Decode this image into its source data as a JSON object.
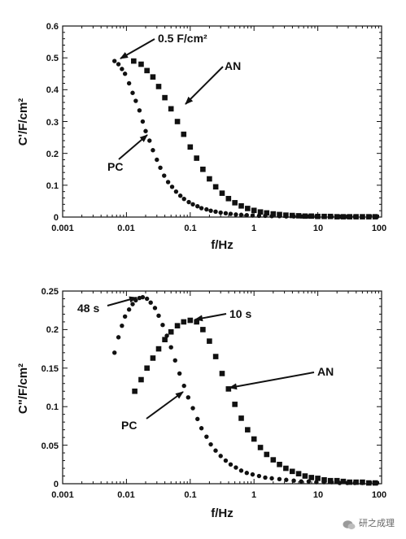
{
  "watermark": "研之成理",
  "chart_data": [
    {
      "type": "scatter",
      "xscale": "log",
      "xlim": [
        0.001,
        100
      ],
      "ylim": [
        0,
        0.6
      ],
      "xticks": [
        "0.001",
        "0.01",
        "0.1",
        "1",
        "10",
        "100"
      ],
      "yticks": [
        "0",
        "0.1",
        "0.2",
        "0.3",
        "0.4",
        "0.5",
        "0.6"
      ],
      "xlabel": "f/Hz",
      "ylabel": "C'/F/cm²",
      "series": [
        {
          "name": "PC",
          "marker": "circle",
          "x": [
            0.0065,
            0.0075,
            0.0085,
            0.0095,
            0.011,
            0.0125,
            0.014,
            0.016,
            0.018,
            0.02,
            0.023,
            0.026,
            0.03,
            0.034,
            0.039,
            0.045,
            0.052,
            0.06,
            0.07,
            0.08,
            0.095,
            0.11,
            0.13,
            0.15,
            0.18,
            0.21,
            0.25,
            0.3,
            0.36,
            0.43,
            0.52,
            0.63,
            0.77,
            0.95,
            1.2,
            1.5,
            1.9,
            2.5,
            3.2,
            4.2,
            5.5,
            7.2,
            9.5,
            12.5,
            16.5,
            22,
            29,
            38,
            50,
            65,
            85
          ],
          "y": [
            0.49,
            0.48,
            0.465,
            0.45,
            0.42,
            0.39,
            0.365,
            0.335,
            0.3,
            0.27,
            0.24,
            0.21,
            0.18,
            0.155,
            0.13,
            0.11,
            0.095,
            0.08,
            0.067,
            0.057,
            0.047,
            0.04,
            0.034,
            0.028,
            0.024,
            0.02,
            0.017,
            0.014,
            0.012,
            0.01,
            0.008,
            0.007,
            0.006,
            0.005,
            0.004,
            0.004,
            0.003,
            0.003,
            0.002,
            0.002,
            0.002,
            0.002,
            0.001,
            0.001,
            0.001,
            0.001,
            0.001,
            0.001,
            0.001,
            0.001,
            0.001
          ]
        },
        {
          "name": "AN",
          "marker": "square",
          "x": [
            0.013,
            0.017,
            0.021,
            0.026,
            0.032,
            0.04,
            0.05,
            0.063,
            0.079,
            0.1,
            0.126,
            0.158,
            0.2,
            0.251,
            0.316,
            0.398,
            0.501,
            0.631,
            0.794,
            1.0,
            1.26,
            1.58,
            2.0,
            2.51,
            3.16,
            3.98,
            5.01,
            6.31,
            7.94,
            10,
            12.6,
            15.8,
            20,
            25.1,
            31.6,
            39.8,
            50.1,
            63.1,
            79.4
          ],
          "y": [
            0.49,
            0.48,
            0.46,
            0.44,
            0.41,
            0.375,
            0.34,
            0.3,
            0.26,
            0.22,
            0.185,
            0.15,
            0.12,
            0.095,
            0.075,
            0.058,
            0.045,
            0.035,
            0.027,
            0.021,
            0.016,
            0.013,
            0.01,
            0.008,
            0.006,
            0.005,
            0.004,
            0.003,
            0.003,
            0.002,
            0.002,
            0.002,
            0.001,
            0.001,
            0.001,
            0.001,
            0.001,
            0.001,
            0.001
          ]
        }
      ],
      "annotations": [
        {
          "text": "0.5 F/cm²",
          "x": 0.008,
          "y": 0.49
        },
        {
          "text": "AN",
          "x": 0.07,
          "y": 0.34
        },
        {
          "text": "PC",
          "x": 0.019,
          "y": 0.27
        }
      ]
    },
    {
      "type": "scatter",
      "xscale": "log",
      "xlim": [
        0.001,
        100
      ],
      "ylim": [
        0,
        0.25
      ],
      "xticks": [
        "0.001",
        "0.01",
        "0.1",
        "1",
        "10",
        "100"
      ],
      "yticks": [
        "0",
        "0.05",
        "0.1",
        "0.15",
        "0.2",
        "0.25"
      ],
      "xlabel": "f/Hz",
      "ylabel": "C\"/F/cm²",
      "series": [
        {
          "name": "PC",
          "marker": "circle",
          "x": [
            0.0065,
            0.0075,
            0.0085,
            0.0095,
            0.011,
            0.0125,
            0.014,
            0.016,
            0.018,
            0.021,
            0.024,
            0.028,
            0.032,
            0.037,
            0.043,
            0.05,
            0.058,
            0.068,
            0.08,
            0.093,
            0.11,
            0.13,
            0.15,
            0.18,
            0.21,
            0.25,
            0.3,
            0.36,
            0.43,
            0.52,
            0.63,
            0.77,
            0.95,
            1.2,
            1.5,
            1.9,
            2.5,
            3.2,
            4.2,
            5.5,
            7.2,
            9.5,
            12.5,
            16.5,
            22,
            29,
            38,
            50,
            65,
            85
          ],
          "y": [
            0.17,
            0.19,
            0.205,
            0.217,
            0.226,
            0.233,
            0.238,
            0.241,
            0.242,
            0.24,
            0.235,
            0.228,
            0.218,
            0.206,
            0.192,
            0.177,
            0.16,
            0.143,
            0.127,
            0.112,
            0.098,
            0.084,
            0.072,
            0.061,
            0.051,
            0.043,
            0.036,
            0.03,
            0.025,
            0.021,
            0.017,
            0.014,
            0.012,
            0.01,
            0.008,
            0.007,
            0.006,
            0.005,
            0.004,
            0.003,
            0.003,
            0.002,
            0.002,
            0.002,
            0.001,
            0.001,
            0.001,
            0.001,
            0.001,
            0.001
          ]
        },
        {
          "name": "AN",
          "marker": "square",
          "x": [
            0.0135,
            0.017,
            0.021,
            0.026,
            0.032,
            0.04,
            0.05,
            0.063,
            0.079,
            0.1,
            0.126,
            0.158,
            0.2,
            0.251,
            0.316,
            0.398,
            0.501,
            0.631,
            0.794,
            1.0,
            1.26,
            1.58,
            2.0,
            2.51,
            3.16,
            3.98,
            5.01,
            6.31,
            7.94,
            10,
            12.6,
            15.8,
            20,
            25.1,
            31.6,
            39.8,
            50.1,
            63.1,
            79.4
          ],
          "y": [
            0.12,
            0.135,
            0.15,
            0.163,
            0.175,
            0.187,
            0.197,
            0.205,
            0.21,
            0.212,
            0.21,
            0.2,
            0.185,
            0.165,
            0.143,
            0.123,
            0.103,
            0.085,
            0.07,
            0.058,
            0.047,
            0.038,
            0.031,
            0.025,
            0.02,
            0.016,
            0.013,
            0.01,
            0.008,
            0.007,
            0.005,
            0.004,
            0.004,
            0.003,
            0.002,
            0.002,
            0.002,
            0.001,
            0.001
          ]
        }
      ],
      "annotations": [
        {
          "text": "48 s",
          "x": 0.012,
          "y": 0.24
        },
        {
          "text": "10 s",
          "x": 0.11,
          "y": 0.21
        },
        {
          "text": "AN",
          "x": 0.4,
          "y": 0.125
        },
        {
          "text": "PC",
          "x": 0.09,
          "y": 0.118
        }
      ]
    }
  ]
}
